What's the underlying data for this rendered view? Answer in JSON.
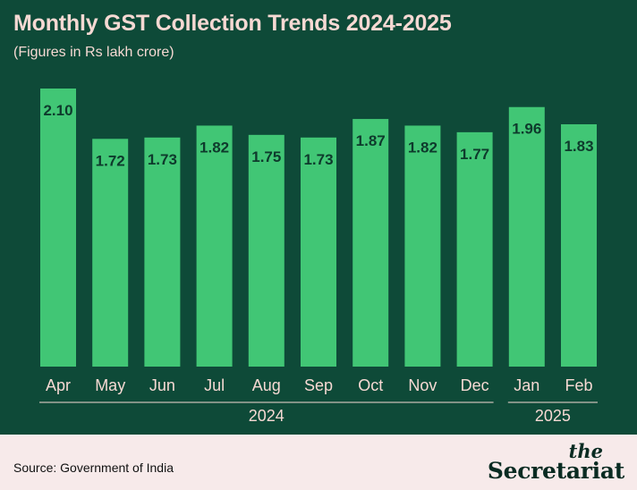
{
  "header": {
    "title": "Monthly GST Collection Trends 2024-2025",
    "subtitle": "(Figures in Rs lakh crore)"
  },
  "footer": {
    "source": "Source: Government of India",
    "logo_the": "the",
    "logo_name": "Secretariat"
  },
  "colors": {
    "background": "#0e4a38",
    "bar": "#41c675",
    "bar_label": "#0e3a2c",
    "axis_text": "#f6d9d3",
    "footer_bg": "#f7eaea"
  },
  "chart_data": {
    "type": "bar",
    "title": "Monthly GST Collection Trends 2024-2025",
    "subtitle": "(Figures in Rs lakh crore)",
    "categories": [
      "Apr",
      "May",
      "Jun",
      "Jul",
      "Aug",
      "Sep",
      "Oct",
      "Nov",
      "Dec",
      "Jan",
      "Feb"
    ],
    "values": [
      2.1,
      1.72,
      1.73,
      1.82,
      1.75,
      1.73,
      1.87,
      1.82,
      1.77,
      1.96,
      1.83
    ],
    "value_labels": [
      "2.10",
      "1.72",
      "1.73",
      "1.82",
      "1.75",
      "1.73",
      "1.87",
      "1.82",
      "1.77",
      "1.96",
      "1.83"
    ],
    "groups": [
      {
        "label": "2024",
        "start": 0,
        "end": 8
      },
      {
        "label": "2025",
        "start": 9,
        "end": 10
      }
    ],
    "xlabel": "",
    "ylabel": "",
    "ylim": [
      0,
      2.1
    ],
    "grid": false,
    "legend": "none"
  }
}
